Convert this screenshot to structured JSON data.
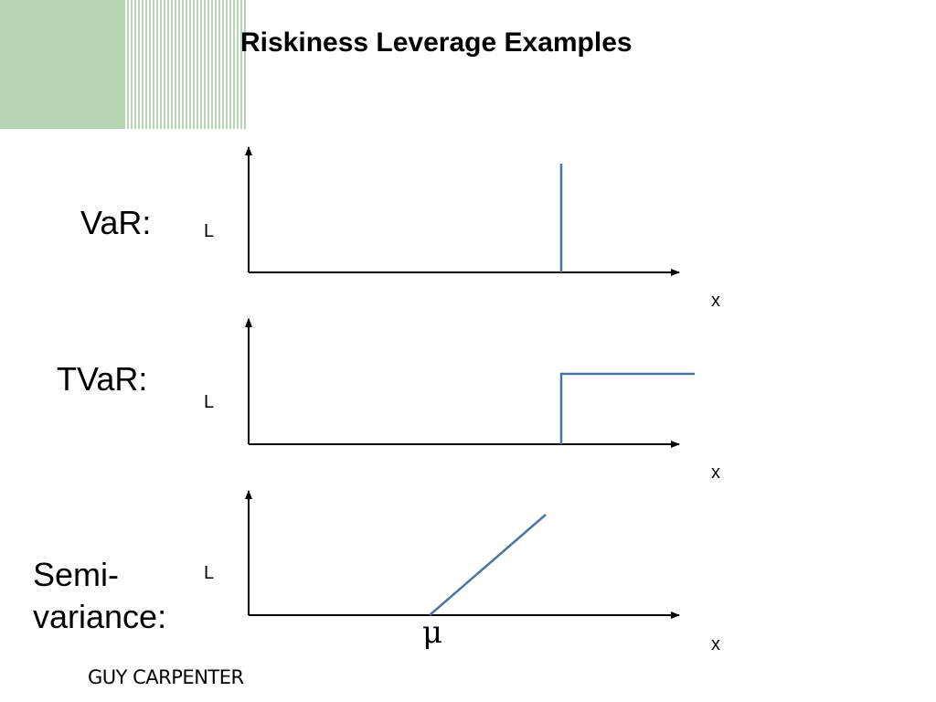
{
  "title": "Riskiness Leverage Examples",
  "footer": {
    "logo_text": "GUY CARPENTER"
  },
  "colors": {
    "accent_green": "#b5d4b1",
    "curve": "#4a75a0",
    "axis": "#000000"
  },
  "rows": [
    {
      "label": "VaR:",
      "y_axis_label": "L",
      "x_axis_label": "x",
      "curve_shape": "vertical spike at threshold"
    },
    {
      "label": "TVaR:",
      "y_axis_label": "L",
      "x_axis_label": "x",
      "curve_shape": "step up at threshold, flat after"
    },
    {
      "label_line1": "Semi-",
      "label_line2": "variance:",
      "y_axis_label": "L",
      "x_axis_label": "x",
      "x_marker": "μ",
      "curve_shape": "linear increase starting at mean"
    }
  ]
}
